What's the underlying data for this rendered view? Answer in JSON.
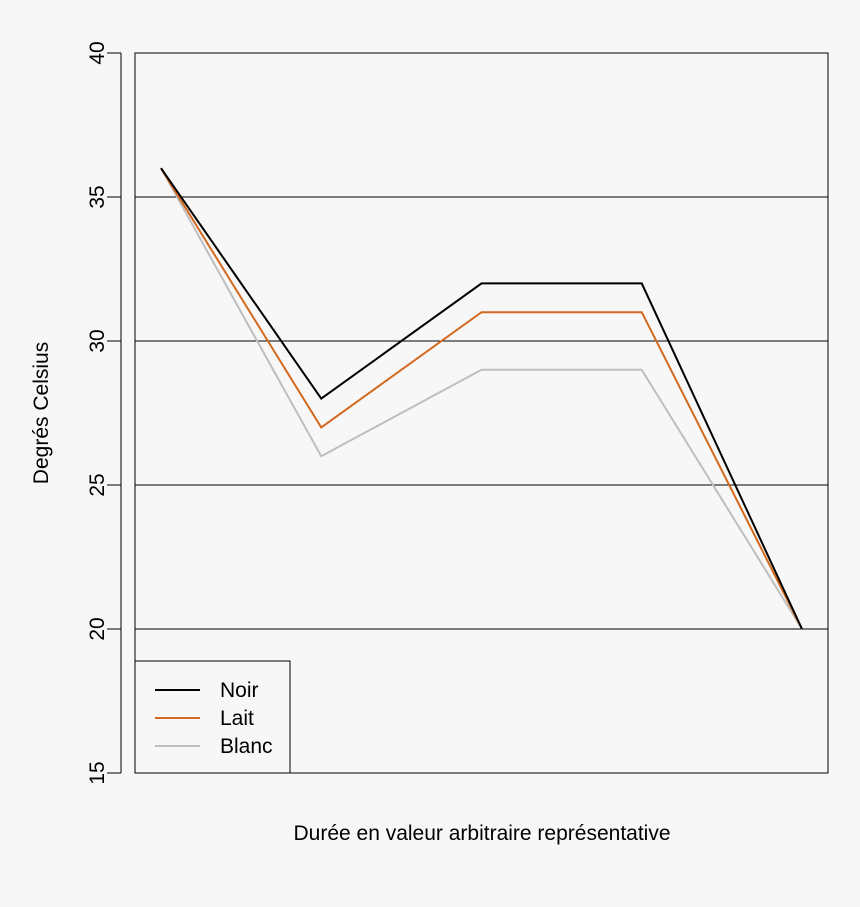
{
  "chart_data": {
    "type": "line",
    "title": "",
    "xlabel": "Durée en valeur arbitraire représentative",
    "ylabel": "Degrés Celsius",
    "ylim": [
      15,
      40
    ],
    "yticks": [
      15,
      20,
      25,
      30,
      35,
      40
    ],
    "grid": "horizontal",
    "legend_position": "bottom-left",
    "x": [
      1,
      2,
      3,
      4,
      5
    ],
    "series": [
      {
        "name": "Noir",
        "color": "#000000",
        "values": [
          36,
          28,
          32,
          32,
          20
        ]
      },
      {
        "name": "Lait",
        "color": "#d2691e",
        "values": [
          36,
          27,
          31,
          31,
          20
        ]
      },
      {
        "name": "Blanc",
        "color": "#bebebe",
        "values": [
          36,
          26,
          29,
          29,
          20
        ]
      }
    ]
  }
}
